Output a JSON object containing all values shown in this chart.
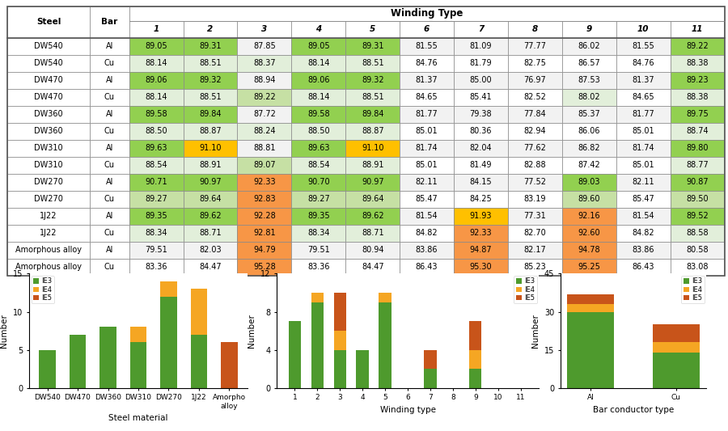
{
  "table": {
    "steels": [
      "DW540",
      "DW540",
      "DW470",
      "DW470",
      "DW360",
      "DW360",
      "DW310",
      "DW310",
      "DW270",
      "DW270",
      "1J22",
      "1J22",
      "Amorphous alloy",
      "Amorphous alloy"
    ],
    "bars": [
      "Al",
      "Cu",
      "Al",
      "Cu",
      "Al",
      "Cu",
      "Al",
      "Cu",
      "Al",
      "Cu",
      "Al",
      "Cu",
      "Al",
      "Cu"
    ],
    "values": [
      [
        89.05,
        89.31,
        87.85,
        89.05,
        89.31,
        81.55,
        81.09,
        77.77,
        86.02,
        81.55,
        89.22
      ],
      [
        88.14,
        88.51,
        88.37,
        88.14,
        88.51,
        84.76,
        81.79,
        82.75,
        86.57,
        84.76,
        88.38
      ],
      [
        89.06,
        89.32,
        88.94,
        89.06,
        89.32,
        81.37,
        85.0,
        76.97,
        87.53,
        81.37,
        89.23
      ],
      [
        88.14,
        88.51,
        89.22,
        88.14,
        88.51,
        84.65,
        85.41,
        82.52,
        88.02,
        84.65,
        88.38
      ],
      [
        89.58,
        89.84,
        87.72,
        89.58,
        89.84,
        81.77,
        79.38,
        77.84,
        85.37,
        81.77,
        89.75
      ],
      [
        88.5,
        88.87,
        88.24,
        88.5,
        88.87,
        85.01,
        80.36,
        82.94,
        86.06,
        85.01,
        88.74
      ],
      [
        89.63,
        91.1,
        88.81,
        89.63,
        91.1,
        81.74,
        82.04,
        77.62,
        86.82,
        81.74,
        89.8
      ],
      [
        88.54,
        88.91,
        89.07,
        88.54,
        88.91,
        85.01,
        81.49,
        82.88,
        87.42,
        85.01,
        88.77
      ],
      [
        90.71,
        90.97,
        92.33,
        90.7,
        90.97,
        82.11,
        84.15,
        77.52,
        89.03,
        82.11,
        90.87
      ],
      [
        89.27,
        89.64,
        92.83,
        89.27,
        89.64,
        85.47,
        84.25,
        83.19,
        89.6,
        85.47,
        89.5
      ],
      [
        89.35,
        89.62,
        92.28,
        89.35,
        89.62,
        81.54,
        91.93,
        77.31,
        92.16,
        81.54,
        89.52
      ],
      [
        88.34,
        88.71,
        92.81,
        88.34,
        88.71,
        84.82,
        92.33,
        82.7,
        92.6,
        84.82,
        88.58
      ],
      [
        79.51,
        82.03,
        94.79,
        79.51,
        80.94,
        83.86,
        94.87,
        82.17,
        94.78,
        83.86,
        80.58
      ],
      [
        83.36,
        84.47,
        95.28,
        83.36,
        84.47,
        86.43,
        95.3,
        85.23,
        95.25,
        86.43,
        83.08
      ]
    ],
    "winding_headers": [
      "1",
      "2",
      "3",
      "4",
      "5",
      "6",
      "7",
      "8",
      "9",
      "10",
      "11"
    ]
  },
  "bar_chart1": {
    "categories": [
      "DW540",
      "DW470",
      "DW360",
      "DW310",
      "DW270",
      "1J22",
      "Amorpho\nalloy"
    ],
    "IE3": [
      5,
      7,
      8,
      6,
      12,
      7,
      0
    ],
    "IE4": [
      0,
      0,
      0,
      2,
      2,
      6,
      0
    ],
    "IE5": [
      0,
      0,
      0,
      0,
      0,
      0,
      6
    ],
    "ylim": 15,
    "yticks": [
      0,
      5,
      10,
      15
    ],
    "xlabel": "Steel material"
  },
  "bar_chart2": {
    "categories": [
      "1",
      "2",
      "3",
      "4",
      "5",
      "6",
      "7",
      "8",
      "9",
      "10",
      "11"
    ],
    "IE3": [
      7,
      9,
      4,
      4,
      9,
      0,
      2,
      0,
      2,
      0,
      0
    ],
    "IE4": [
      0,
      1,
      2,
      0,
      1,
      0,
      0,
      0,
      2,
      0,
      0
    ],
    "IE5": [
      0,
      0,
      4,
      0,
      0,
      0,
      2,
      0,
      3,
      0,
      0
    ],
    "ylim": 12,
    "yticks": [
      0,
      4,
      8,
      12
    ],
    "xlabel": "Winding type"
  },
  "bar_chart3": {
    "categories": [
      "Al",
      "Cu"
    ],
    "IE3": [
      30,
      14
    ],
    "IE4": [
      3,
      4
    ],
    "IE5": [
      4,
      7
    ],
    "ylim": 45,
    "yticks": [
      0,
      15,
      30,
      45
    ],
    "xlabel": "Bar conductor type"
  },
  "colors": {
    "IE3": "#4e9a2d",
    "IE4": "#f5a623",
    "IE5": "#c8541a",
    "border": "#aaaaaa"
  }
}
